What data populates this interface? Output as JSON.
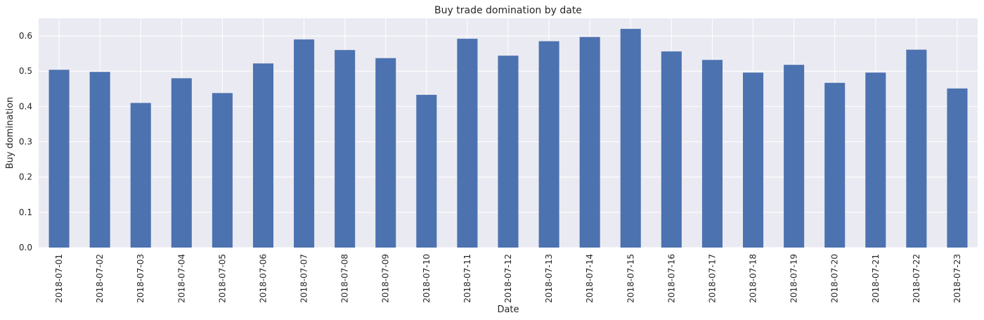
{
  "chart_data": {
    "type": "bar",
    "title": "Buy trade domination by date",
    "xlabel": "Date",
    "ylabel": "Buy domination",
    "categories": [
      "2018-07-01",
      "2018-07-02",
      "2018-07-03",
      "2018-07-04",
      "2018-07-05",
      "2018-07-06",
      "2018-07-07",
      "2018-07-08",
      "2018-07-09",
      "2018-07-10",
      "2018-07-11",
      "2018-07-12",
      "2018-07-13",
      "2018-07-14",
      "2018-07-15",
      "2018-07-16",
      "2018-07-17",
      "2018-07-18",
      "2018-07-19",
      "2018-07-20",
      "2018-07-21",
      "2018-07-22",
      "2018-07-23"
    ],
    "values": [
      0.504,
      0.498,
      0.41,
      0.48,
      0.438,
      0.522,
      0.59,
      0.56,
      0.537,
      0.433,
      0.592,
      0.544,
      0.585,
      0.597,
      0.62,
      0.556,
      0.532,
      0.496,
      0.518,
      0.467,
      0.496,
      0.561,
      0.451
    ],
    "yticks": [
      0.0,
      0.1,
      0.2,
      0.3,
      0.4,
      0.5,
      0.6
    ],
    "ytick_labels": [
      "0.0",
      "0.1",
      "0.2",
      "0.3",
      "0.4",
      "0.5",
      "0.6"
    ],
    "ylim": [
      0,
      0.65
    ],
    "grid": true,
    "legend": "none",
    "colors": {
      "bar": "#4c72b0",
      "plot_background": "#eaeaf2",
      "grid": "#ffffff",
      "text": "#262626"
    }
  }
}
